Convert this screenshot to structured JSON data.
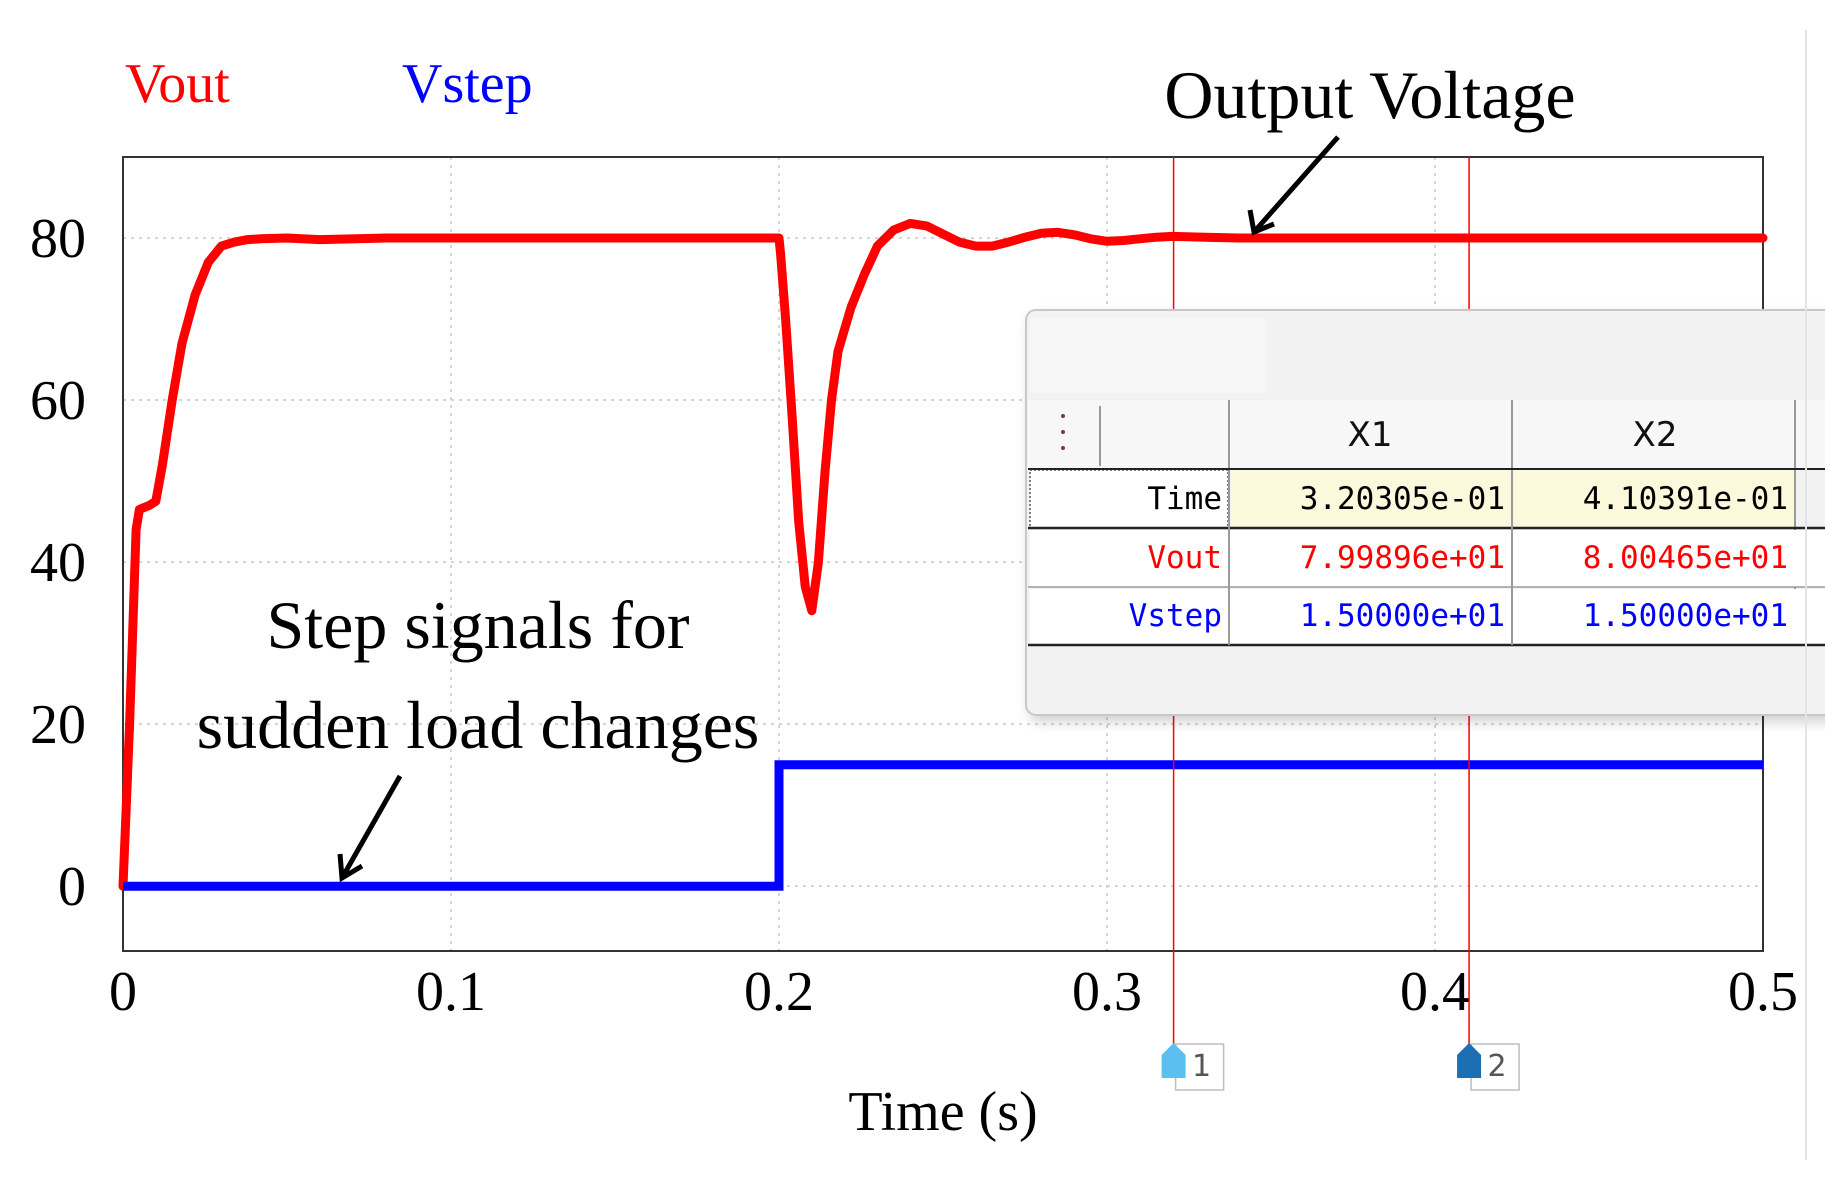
{
  "legend": {
    "vout_label": "Vout",
    "vstep_label": "Vstep",
    "vout_color": "#ff0000",
    "vstep_color": "#0000ff"
  },
  "annotations": {
    "output_voltage": "Output Voltage",
    "step_line1": "Step signals for",
    "step_line2": "sudden load changes"
  },
  "chart_data": {
    "type": "line",
    "title": "",
    "xlabel": "Time (s)",
    "ylabel": "",
    "xlim": [
      0,
      0.5
    ],
    "ylim": [
      -8,
      90
    ],
    "xticks": [
      0,
      0.1,
      0.2,
      0.3,
      0.4,
      0.5
    ],
    "xtick_labels": [
      "0",
      "0.1",
      "0.2",
      "0.3",
      "0.4",
      "0.5"
    ],
    "yticks": [
      0,
      20,
      40,
      60,
      80
    ],
    "ytick_labels": [
      "0",
      "20",
      "40",
      "60",
      "80"
    ],
    "grid": true,
    "series": [
      {
        "name": "Vout",
        "color": "#ff0000",
        "x": [
          0,
          0.002,
          0.004,
          0.005,
          0.008,
          0.01,
          0.012,
          0.015,
          0.018,
          0.022,
          0.026,
          0.03,
          0.034,
          0.038,
          0.042,
          0.05,
          0.06,
          0.08,
          0.1,
          0.15,
          0.2,
          0.2005,
          0.202,
          0.204,
          0.206,
          0.208,
          0.21,
          0.212,
          0.214,
          0.216,
          0.218,
          0.222,
          0.226,
          0.23,
          0.235,
          0.24,
          0.245,
          0.25,
          0.255,
          0.26,
          0.265,
          0.27,
          0.275,
          0.28,
          0.285,
          0.29,
          0.295,
          0.3,
          0.305,
          0.31,
          0.315,
          0.32,
          0.33,
          0.34,
          0.35,
          0.36,
          0.38,
          0.4,
          0.42,
          0.45,
          0.5
        ],
        "y": [
          0,
          20,
          44,
          46.5,
          47,
          47.5,
          52,
          60,
          67,
          73,
          77,
          79,
          79.5,
          79.8,
          79.9,
          80,
          79.8,
          80,
          80,
          80,
          80,
          78,
          70,
          58,
          45,
          37,
          34,
          40,
          51,
          60,
          66,
          71.5,
          75.5,
          79,
          81,
          81.8,
          81.5,
          80.5,
          79.5,
          79,
          79,
          79.5,
          80.1,
          80.6,
          80.7,
          80.4,
          79.9,
          79.6,
          79.7,
          79.9,
          80.1,
          80.2,
          80.1,
          80,
          80,
          80,
          80,
          80,
          80,
          80,
          80
        ]
      },
      {
        "name": "Vstep",
        "color": "#0000ff",
        "x": [
          0,
          0.2,
          0.2,
          0.5
        ],
        "y": [
          0,
          0,
          15,
          15
        ]
      }
    ],
    "cursors": [
      {
        "label": "1",
        "x": 0.320305
      },
      {
        "label": "2",
        "x": 0.410391
      }
    ]
  },
  "cursor_table": {
    "col_headers": [
      "X1",
      "X2"
    ],
    "rows": [
      {
        "label": "Time",
        "x1": "3.20305e-01",
        "x2": "4.10391e-01",
        "color": "#000000"
      },
      {
        "label": "Vout",
        "x1": "7.99896e+01",
        "x2": "8.00465e+01",
        "color": "#ff0000"
      },
      {
        "label": "Vstep",
        "x1": "1.50000e+01",
        "x2": "1.50000e+01",
        "color": "#0000ff"
      }
    ],
    "menu_icon": "vertical-dots-icon"
  }
}
